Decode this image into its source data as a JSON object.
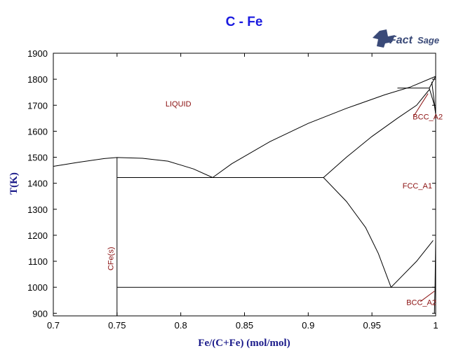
{
  "chart_data": {
    "type": "phase-diagram",
    "title": "C - Fe",
    "xlabel": "Fe/(C+Fe) (mol/mol)",
    "ylabel": "T(K)",
    "xlim": [
      0.7,
      1.0
    ],
    "ylim": [
      890,
      1900
    ],
    "x_ticks": [
      {
        "v": 0.7,
        "label": "0.7"
      },
      {
        "v": 0.75,
        "label": "0.75"
      },
      {
        "v": 0.8,
        "label": "0.8"
      },
      {
        "v": 0.85,
        "label": "0.85"
      },
      {
        "v": 0.9,
        "label": "0.9"
      },
      {
        "v": 0.95,
        "label": "0.95"
      },
      {
        "v": 1.0,
        "label": "1"
      }
    ],
    "y_ticks": [
      {
        "v": 900,
        "label": "900"
      },
      {
        "v": 1000,
        "label": "1000"
      },
      {
        "v": 1100,
        "label": "1100"
      },
      {
        "v": 1200,
        "label": "1200"
      },
      {
        "v": 1300,
        "label": "1300"
      },
      {
        "v": 1400,
        "label": "1400"
      },
      {
        "v": 1500,
        "label": "1500"
      },
      {
        "v": 1600,
        "label": "1600"
      },
      {
        "v": 1700,
        "label": "1700"
      },
      {
        "v": 1800,
        "label": "1800"
      },
      {
        "v": 1900,
        "label": "1900"
      }
    ],
    "lines": [
      {
        "name": "cfe-liquidus",
        "points": [
          [
            0.7,
            1465
          ],
          [
            0.72,
            1481
          ],
          [
            0.74,
            1495
          ],
          [
            0.75,
            1499
          ],
          [
            0.77,
            1496
          ],
          [
            0.79,
            1485
          ],
          [
            0.81,
            1455
          ],
          [
            0.825,
            1422
          ]
        ]
      },
      {
        "name": "liquidus-fcc-liquid",
        "points": [
          [
            0.825,
            1422
          ],
          [
            0.84,
            1475
          ],
          [
            0.87,
            1560
          ],
          [
            0.9,
            1630
          ],
          [
            0.93,
            1688
          ],
          [
            0.96,
            1740
          ],
          [
            0.98,
            1770
          ],
          [
            1.0,
            1811
          ]
        ]
      },
      {
        "name": "solidus-fcc",
        "points": [
          [
            0.912,
            1422
          ],
          [
            0.93,
            1500
          ],
          [
            0.95,
            1580
          ],
          [
            0.97,
            1650
          ],
          [
            0.985,
            1700
          ],
          [
            0.995,
            1760
          ]
        ]
      },
      {
        "name": "eutectic",
        "points": [
          [
            0.75,
            1422
          ],
          [
            0.912,
            1422
          ]
        ]
      },
      {
        "name": "cfe-line",
        "points": [
          [
            0.75,
            890
          ],
          [
            0.75,
            1499
          ]
        ]
      },
      {
        "name": "eutectoid",
        "points": [
          [
            0.75,
            1000
          ],
          [
            1.0,
            1000
          ]
        ]
      },
      {
        "name": "fcc-solvus",
        "points": [
          [
            0.912,
            1422
          ],
          [
            0.93,
            1330
          ],
          [
            0.945,
            1230
          ],
          [
            0.955,
            1130
          ],
          [
            0.965,
            1000
          ]
        ]
      },
      {
        "name": "bcc-fcc-boundary",
        "points": [
          [
            0.965,
            1000
          ],
          [
            0.985,
            1100
          ],
          [
            0.998,
            1180
          ]
        ]
      },
      {
        "name": "peritectic",
        "points": [
          [
            0.97,
            1766
          ],
          [
            0.995,
            1766
          ]
        ]
      },
      {
        "name": "delta-boundary-1",
        "points": [
          [
            0.995,
            1766
          ],
          [
            1.0,
            1811
          ]
        ]
      },
      {
        "name": "delta-boundary-2",
        "points": [
          [
            0.995,
            1766
          ],
          [
            0.999,
            1700
          ],
          [
            1.0,
            1667
          ]
        ]
      },
      {
        "name": "delta-boundary-3",
        "points": [
          [
            0.997,
            1790
          ],
          [
            1.0,
            1667
          ]
        ]
      },
      {
        "name": "bcc-alpha",
        "points": [
          [
            0.999,
            900
          ],
          [
            0.9995,
            1000
          ],
          [
            1.0,
            1184
          ]
        ]
      }
    ],
    "labels": [
      {
        "text": "LIQUID",
        "x": 0.788,
        "y": 1695
      },
      {
        "text": "FCC_A1",
        "x": 0.974,
        "y": 1380
      },
      {
        "text": "BCC_A2",
        "x": 0.982,
        "y": 1645
      },
      {
        "text": "BCC_A2",
        "x": 0.977,
        "y": 932
      },
      {
        "text": "CFe(s)",
        "x": 0.747,
        "y": 1110,
        "rotate": -90
      }
    ],
    "leaders": [
      {
        "from": [
          0.983,
          1660
        ],
        "to": [
          0.994,
          1745
        ]
      },
      {
        "from": [
          0.988,
          945
        ],
        "to": [
          0.999,
          985
        ]
      }
    ],
    "legend": "none",
    "grid": false
  },
  "logo": {
    "main": "Fact",
    "script": "Sage"
  }
}
